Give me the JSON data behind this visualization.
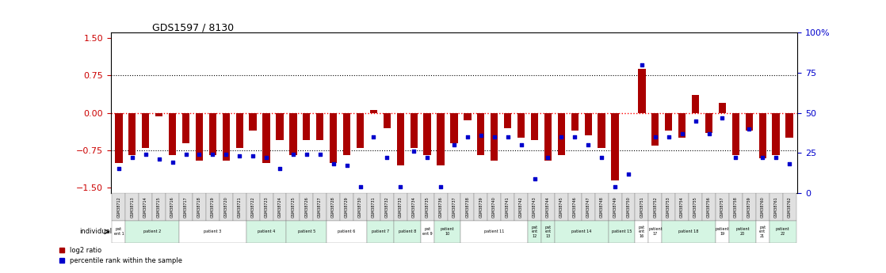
{
  "title": "GDS1597 / 8130",
  "gsm_labels": [
    "GSM38712",
    "GSM38713",
    "GSM38714",
    "GSM38715",
    "GSM38716",
    "GSM38717",
    "GSM38718",
    "GSM38719",
    "GSM38720",
    "GSM38721",
    "GSM38722",
    "GSM38723",
    "GSM38724",
    "GSM38725",
    "GSM38726",
    "GSM38727",
    "GSM38728",
    "GSM38729",
    "GSM38730",
    "GSM38731",
    "GSM38732",
    "GSM38733",
    "GSM38734",
    "GSM38735",
    "GSM38736",
    "GSM38737",
    "GSM38738",
    "GSM38739",
    "GSM38740",
    "GSM38741",
    "GSM38742",
    "GSM38743",
    "GSM38744",
    "GSM38745",
    "GSM38746",
    "GSM38747",
    "GSM38748",
    "GSM38749",
    "GSM38750",
    "GSM38751",
    "GSM38752",
    "GSM38753",
    "GSM38754",
    "GSM38755",
    "GSM38756",
    "GSM38757",
    "GSM38758",
    "GSM38759",
    "GSM38760",
    "GSM38761",
    "GSM38762"
  ],
  "log2_ratio": [
    -1.0,
    -0.85,
    -0.7,
    -0.07,
    -0.85,
    -0.6,
    -0.95,
    -0.85,
    -0.95,
    -0.7,
    -0.35,
    -1.0,
    -0.55,
    -0.85,
    -0.55,
    -0.55,
    -1.0,
    -0.85,
    -0.7,
    0.05,
    -0.3,
    -1.05,
    -0.7,
    -0.85,
    -1.05,
    -0.6,
    -0.15,
    -0.85,
    -0.95,
    -0.3,
    -0.5,
    -0.55,
    -0.95,
    -0.85,
    -0.35,
    -0.45,
    -0.7,
    -1.35,
    0.0,
    0.88,
    -0.65,
    -0.35,
    -0.5,
    0.35,
    -0.4,
    0.2,
    -0.85,
    -0.35,
    -0.9,
    -0.85,
    -0.5
  ],
  "percentile_rank": [
    15,
    22,
    24,
    21,
    19,
    24,
    24,
    24,
    24,
    23,
    23,
    22,
    15,
    24,
    24,
    24,
    18,
    17,
    4,
    35,
    22,
    4,
    26,
    22,
    4,
    30,
    35,
    36,
    35,
    35,
    30,
    9,
    22,
    35,
    35,
    30,
    22,
    4,
    12,
    80,
    35,
    35,
    37,
    45,
    37,
    47,
    22,
    40,
    22,
    22,
    18
  ],
  "patients": [
    {
      "label": "pat\nent 1",
      "start": 0,
      "end": 0,
      "color": "#ffffff"
    },
    {
      "label": "patient 2",
      "start": 1,
      "end": 4,
      "color": "#d5f5e3"
    },
    {
      "label": "patient 3",
      "start": 5,
      "end": 9,
      "color": "#ffffff"
    },
    {
      "label": "patient 4",
      "start": 10,
      "end": 12,
      "color": "#d5f5e3"
    },
    {
      "label": "patient 5",
      "start": 13,
      "end": 15,
      "color": "#d5f5e3"
    },
    {
      "label": "patient 6",
      "start": 16,
      "end": 18,
      "color": "#ffffff"
    },
    {
      "label": "patient 7",
      "start": 19,
      "end": 20,
      "color": "#d5f5e3"
    },
    {
      "label": "patient 8",
      "start": 21,
      "end": 22,
      "color": "#d5f5e3"
    },
    {
      "label": "pat\nent 9",
      "start": 23,
      "end": 23,
      "color": "#ffffff"
    },
    {
      "label": "patient\n10",
      "start": 24,
      "end": 25,
      "color": "#d5f5e3"
    },
    {
      "label": "patient 11",
      "start": 26,
      "end": 30,
      "color": "#ffffff"
    },
    {
      "label": "pat\nent\n12",
      "start": 31,
      "end": 31,
      "color": "#d5f5e3"
    },
    {
      "label": "pat\nent\n13",
      "start": 32,
      "end": 32,
      "color": "#d5f5e3"
    },
    {
      "label": "patient 14",
      "start": 33,
      "end": 36,
      "color": "#d5f5e3"
    },
    {
      "label": "patient 15",
      "start": 37,
      "end": 38,
      "color": "#d5f5e3"
    },
    {
      "label": "pat\nent\n16",
      "start": 39,
      "end": 39,
      "color": "#ffffff"
    },
    {
      "label": "patient\n17",
      "start": 40,
      "end": 40,
      "color": "#ffffff"
    },
    {
      "label": "patient 18",
      "start": 41,
      "end": 44,
      "color": "#d5f5e3"
    },
    {
      "label": "patient\n19",
      "start": 45,
      "end": 45,
      "color": "#ffffff"
    },
    {
      "label": "patient\n20",
      "start": 46,
      "end": 47,
      "color": "#d5f5e3"
    },
    {
      "label": "pat\nent\n21",
      "start": 48,
      "end": 48,
      "color": "#ffffff"
    },
    {
      "label": "patient\n22",
      "start": 49,
      "end": 50,
      "color": "#d5f5e3"
    }
  ],
  "ylim_left": [
    -1.6,
    1.6
  ],
  "ylim_right": [
    0,
    100
  ],
  "yticks_left": [
    -1.5,
    -0.75,
    0,
    0.75,
    1.5
  ],
  "yticks_right": [
    0,
    25,
    50,
    75,
    100
  ],
  "hline_dotted": [
    0.75,
    -0.75
  ],
  "hline_red": 0.0,
  "bar_color": "#aa0000",
  "dot_color": "#0000cc",
  "bg_color": "#ffffff",
  "left_tick_color": "#cc0000",
  "right_tick_color": "#0000cc"
}
